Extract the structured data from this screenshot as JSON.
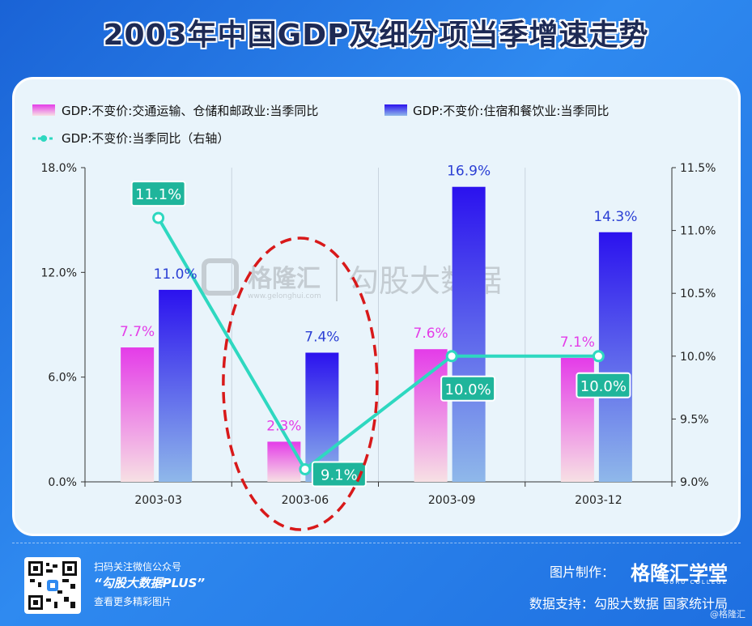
{
  "title": "2003年中国GDP及细分项当季增速走势",
  "colors": {
    "transport_top": "#e43ce8",
    "transport_bottom": "#f7e0e4",
    "hotel_top": "#2b12ee",
    "hotel_bottom": "#8fb8ea",
    "line": "#2ed8c0",
    "label_bg": "#1fb59b",
    "transport_label": "#e43ce8",
    "hotel_label": "#2b3fd4",
    "highlight": "#d8191a"
  },
  "watermark": {
    "brand": "格隆汇",
    "url": "www.gelonghui.com",
    "text": "勾股大数据"
  },
  "chart_data": {
    "type": "bar",
    "categories": [
      "2003-03",
      "2003-06",
      "2003-09",
      "2003-12"
    ],
    "series": [
      {
        "name": "GDP:不变价:交通运输、仓储和邮政业:当季同比",
        "axis": "left",
        "values": [
          7.7,
          2.3,
          7.6,
          7.1
        ],
        "labels": [
          "7.7%",
          "2.3%",
          "7.6%",
          "7.1%"
        ]
      },
      {
        "name": "GDP:不变价:住宿和餐饮业:当季同比",
        "axis": "left",
        "values": [
          11.0,
          7.4,
          16.9,
          14.3
        ],
        "labels": [
          "11.0%",
          "7.4%",
          "16.9%",
          "14.3%"
        ]
      },
      {
        "name": "GDP:不变价:当季同比（右轴）",
        "axis": "right",
        "type": "line",
        "values": [
          11.1,
          9.1,
          10.0,
          10.0
        ],
        "labels": [
          "11.1%",
          "9.1%",
          "10.0%",
          "10.0%"
        ]
      }
    ],
    "ylim_left": [
      0,
      18
    ],
    "yticks_left": [
      "18.0%",
      "12.0%",
      "6.0%",
      "0.0%"
    ],
    "ylim_right": [
      9.0,
      11.5
    ],
    "yticks_right": [
      "11.5%",
      "11.0%",
      "10.5%",
      "10.0%",
      "9.5%",
      "9.0%"
    ],
    "grid": "vertical",
    "legend": "top-left",
    "highlight_category": "2003-06"
  },
  "footer": {
    "scan_text": "扫码关注微信公众号",
    "account": "“勾股大数据PLUS”",
    "more_text": "查看更多精彩图片",
    "made_by_label": "图片制作：",
    "brand": "格隆汇学堂",
    "brand_sub": "GURU COLLEGE",
    "source": "数据支持：勾股大数据 国家统计局",
    "credit": "@格隆汇"
  }
}
